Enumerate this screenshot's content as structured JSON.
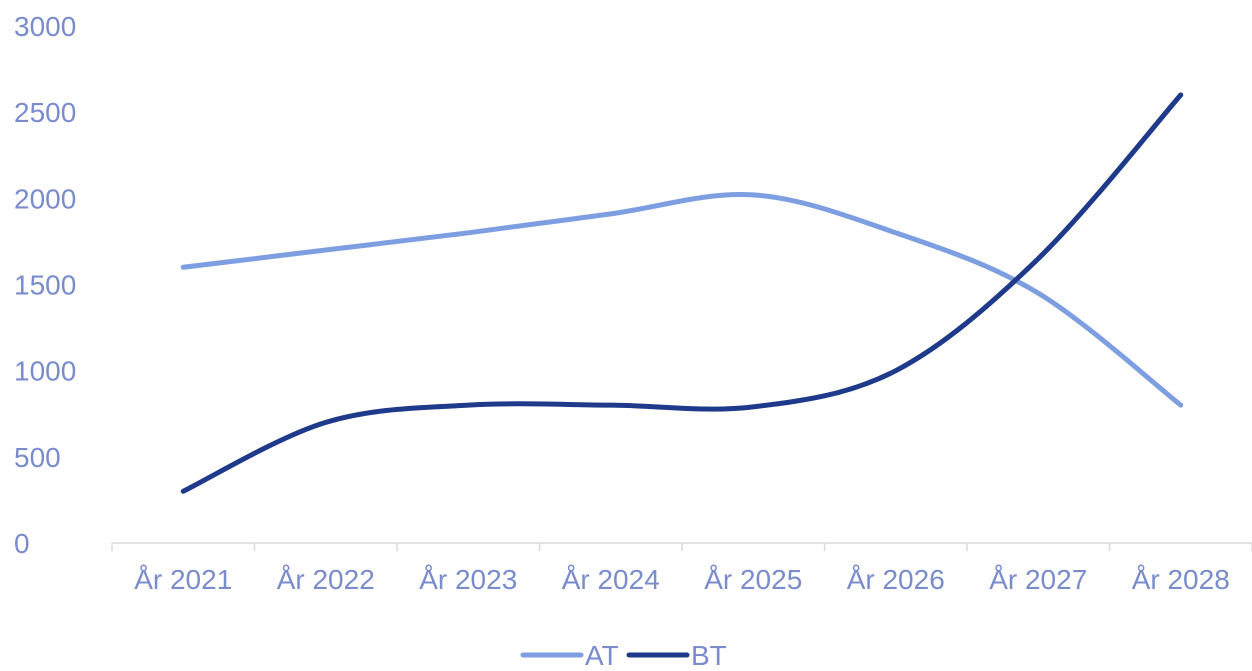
{
  "chart_data": {
    "type": "line",
    "title": "",
    "xlabel": "",
    "ylabel": "",
    "categories": [
      "År 2021",
      "År 2022",
      "År 2023",
      "År 2024",
      "År 2025",
      "År 2026",
      "År 2027",
      "År 2028"
    ],
    "ylim": [
      0,
      3000
    ],
    "yticks": [
      0,
      500,
      1000,
      1500,
      2000,
      2500,
      3000
    ],
    "grid": false,
    "smooth": true,
    "legend_position": "bottom",
    "series": [
      {
        "name": "AT",
        "color": "#7D9EE0",
        "values": [
          1600,
          1700,
          1800,
          1910,
          2020,
          1800,
          1450,
          800
        ]
      },
      {
        "name": "BT",
        "color": "#1F3A8A",
        "values": [
          300,
          700,
          800,
          800,
          790,
          1000,
          1650,
          2600
        ]
      }
    ],
    "axis_text_color": "#7A8CCB",
    "axis_line_color": "#D9D9D9"
  }
}
